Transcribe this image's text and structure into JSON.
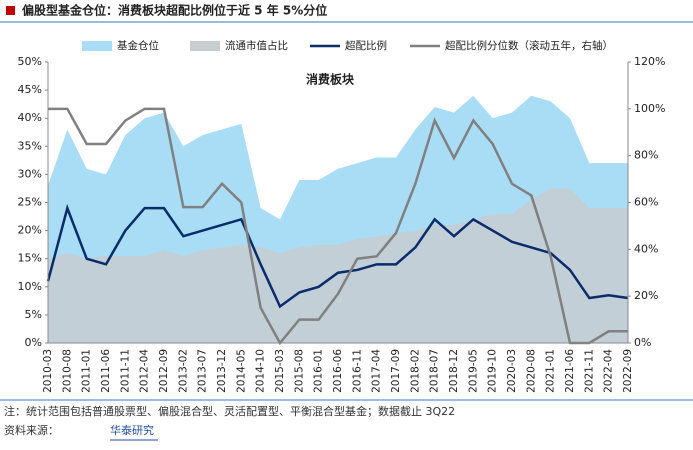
{
  "header": {
    "title": "偏股型基金仓位：消费板块超配比例位于近 5 年 5%分位"
  },
  "chart_data": {
    "type": "area-line",
    "title": "消费板块",
    "categories": [
      "2010-03",
      "2010-08",
      "2011-01",
      "2011-06",
      "2011-11",
      "2012-04",
      "2012-09",
      "2013-02",
      "2013-07",
      "2013-12",
      "2014-05",
      "2014-10",
      "2015-03",
      "2015-08",
      "2016-01",
      "2016-06",
      "2016-11",
      "2017-04",
      "2017-09",
      "2018-02",
      "2018-07",
      "2018-12",
      "2019-05",
      "2019-10",
      "2020-03",
      "2020-08",
      "2021-01",
      "2021-06",
      "2021-11",
      "2022-04",
      "2022-09"
    ],
    "series": [
      {
        "name": "基金仓位",
        "kind": "area",
        "color": "#a9ddf5",
        "values": [
          28,
          38,
          31,
          30,
          37,
          40,
          41,
          35,
          37,
          38,
          39,
          24,
          22,
          29,
          29,
          31,
          32,
          33,
          33,
          38,
          42,
          41,
          44,
          40,
          41,
          44,
          43,
          40,
          32,
          32,
          32
        ]
      },
      {
        "name": "流通市值占比",
        "kind": "area",
        "color": "#c8cdd0",
        "values": [
          15,
          16,
          15,
          15.5,
          15.5,
          15.5,
          16.5,
          15.5,
          16.5,
          17,
          17.5,
          17,
          16,
          17,
          17.5,
          17.5,
          18.5,
          19,
          19.5,
          20,
          21,
          21,
          22,
          23,
          23,
          25.5,
          27.5,
          27.5,
          24,
          24,
          24
        ]
      },
      {
        "name": "超配比例",
        "kind": "line",
        "color": "#0b2c6b",
        "values": [
          11,
          24,
          15,
          14,
          20,
          24,
          24,
          19,
          20,
          21,
          22,
          14,
          6.5,
          9,
          10,
          12.5,
          13,
          14,
          14,
          17,
          22,
          19,
          22,
          20,
          18,
          17,
          16,
          13,
          8,
          8.5,
          8
        ]
      },
      {
        "name": "超配比例分位数（滚动五年，右轴）",
        "kind": "line",
        "axis": "y2",
        "color": "#808080",
        "values": [
          100,
          100,
          85,
          85,
          95,
          100,
          100,
          58,
          58,
          68,
          60,
          15,
          0,
          10,
          10,
          21,
          36,
          37,
          47,
          68,
          95,
          79,
          95,
          85,
          68,
          63,
          37,
          0,
          0,
          5,
          5
        ]
      }
    ],
    "ylim": [
      0,
      50
    ],
    "yticks": [
      {
        "value": 0,
        "label": "0%"
      },
      {
        "value": 5,
        "label": "5%"
      },
      {
        "value": 10,
        "label": "10%"
      },
      {
        "value": 15,
        "label": "15%"
      },
      {
        "value": 20,
        "label": "20%"
      },
      {
        "value": 25,
        "label": "25%"
      },
      {
        "value": 30,
        "label": "30%"
      },
      {
        "value": 35,
        "label": "35%"
      },
      {
        "value": 40,
        "label": "40%"
      },
      {
        "value": 45,
        "label": "45%"
      },
      {
        "value": 50,
        "label": "50%"
      }
    ],
    "y2lim": [
      0,
      120
    ],
    "y2ticks": [
      {
        "value": 0,
        "label": "0%"
      },
      {
        "value": 20,
        "label": "20%"
      },
      {
        "value": 40,
        "label": "40%"
      },
      {
        "value": 60,
        "label": "60%"
      },
      {
        "value": 80,
        "label": "80%"
      },
      {
        "value": 100,
        "label": "100%"
      },
      {
        "value": 120,
        "label": "120%"
      }
    ]
  },
  "footer": {
    "note": "注：统计范围包括普通股票型、偏股混合型、灵活配置型、平衡混合型基金；数据截止 3Q22",
    "source": "资料来源：",
    "brand": "华泰研究"
  }
}
